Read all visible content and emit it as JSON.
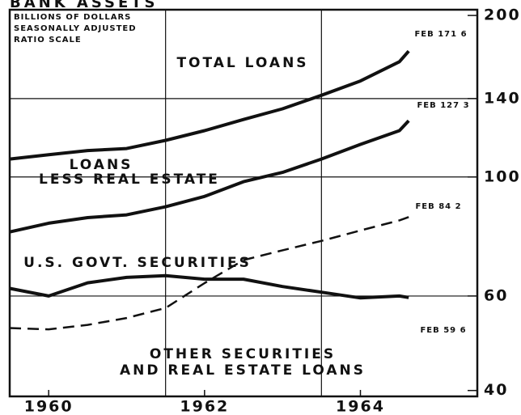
{
  "chart_data": {
    "type": "line",
    "title": "BANK ASSETS",
    "axis_note": [
      "BILLIONS OF DOLLARS",
      "SEASONALLY ADJUSTED",
      "RATIO SCALE"
    ],
    "x": [
      1960,
      1960.5,
      1961,
      1961.5,
      1962,
      1962.5,
      1963,
      1963.5,
      1964,
      1964.5,
      1965,
      1965.12
    ],
    "xlim": [
      1960,
      1966
    ],
    "xticks": [
      {
        "value": 1960.5,
        "label": "1960"
      },
      {
        "value": 1962.5,
        "label": "1962"
      },
      {
        "value": 1964.5,
        "label": "1964"
      }
    ],
    "xgrid": [
      1962,
      1964
    ],
    "ylim": [
      39,
      205
    ],
    "log_scale": true,
    "yticks": [
      40,
      60,
      100,
      140,
      200
    ],
    "ygrid": [
      60,
      100,
      140
    ],
    "grid": true,
    "series": [
      {
        "name": [
          "TOTAL LOANS"
        ],
        "color": "#111111",
        "dashed": false,
        "end_label": "FEB 171 6",
        "values": [
          108,
          110,
          112,
          113,
          117,
          122,
          128,
          134,
          142,
          151,
          164,
          171.6
        ]
      },
      {
        "name": [
          "LOANS",
          "LESS REAL ESTATE"
        ],
        "color": "#111111",
        "dashed": false,
        "end_label": "FEB 127 3",
        "values": [
          79,
          82,
          84,
          85,
          88,
          92,
          98,
          102,
          108,
          115,
          122,
          127.3
        ]
      },
      {
        "name": [
          "U.S. GOVT. SECURITIES"
        ],
        "color": "#111111",
        "dashed": false,
        "end_label": "FEB 59 6",
        "values": [
          62,
          60,
          63.5,
          65,
          65.5,
          64.5,
          64.5,
          62.5,
          61,
          59.5,
          60,
          59.6
        ]
      },
      {
        "name": [
          "OTHER SECURITIES",
          "AND REAL ESTATE LOANS"
        ],
        "color": "#111111",
        "dashed": true,
        "end_label": "FEB 84 2",
        "values": [
          52.3,
          52,
          53,
          54.6,
          57,
          63.4,
          70,
          73,
          76,
          79.5,
          83,
          84.2
        ]
      }
    ]
  }
}
